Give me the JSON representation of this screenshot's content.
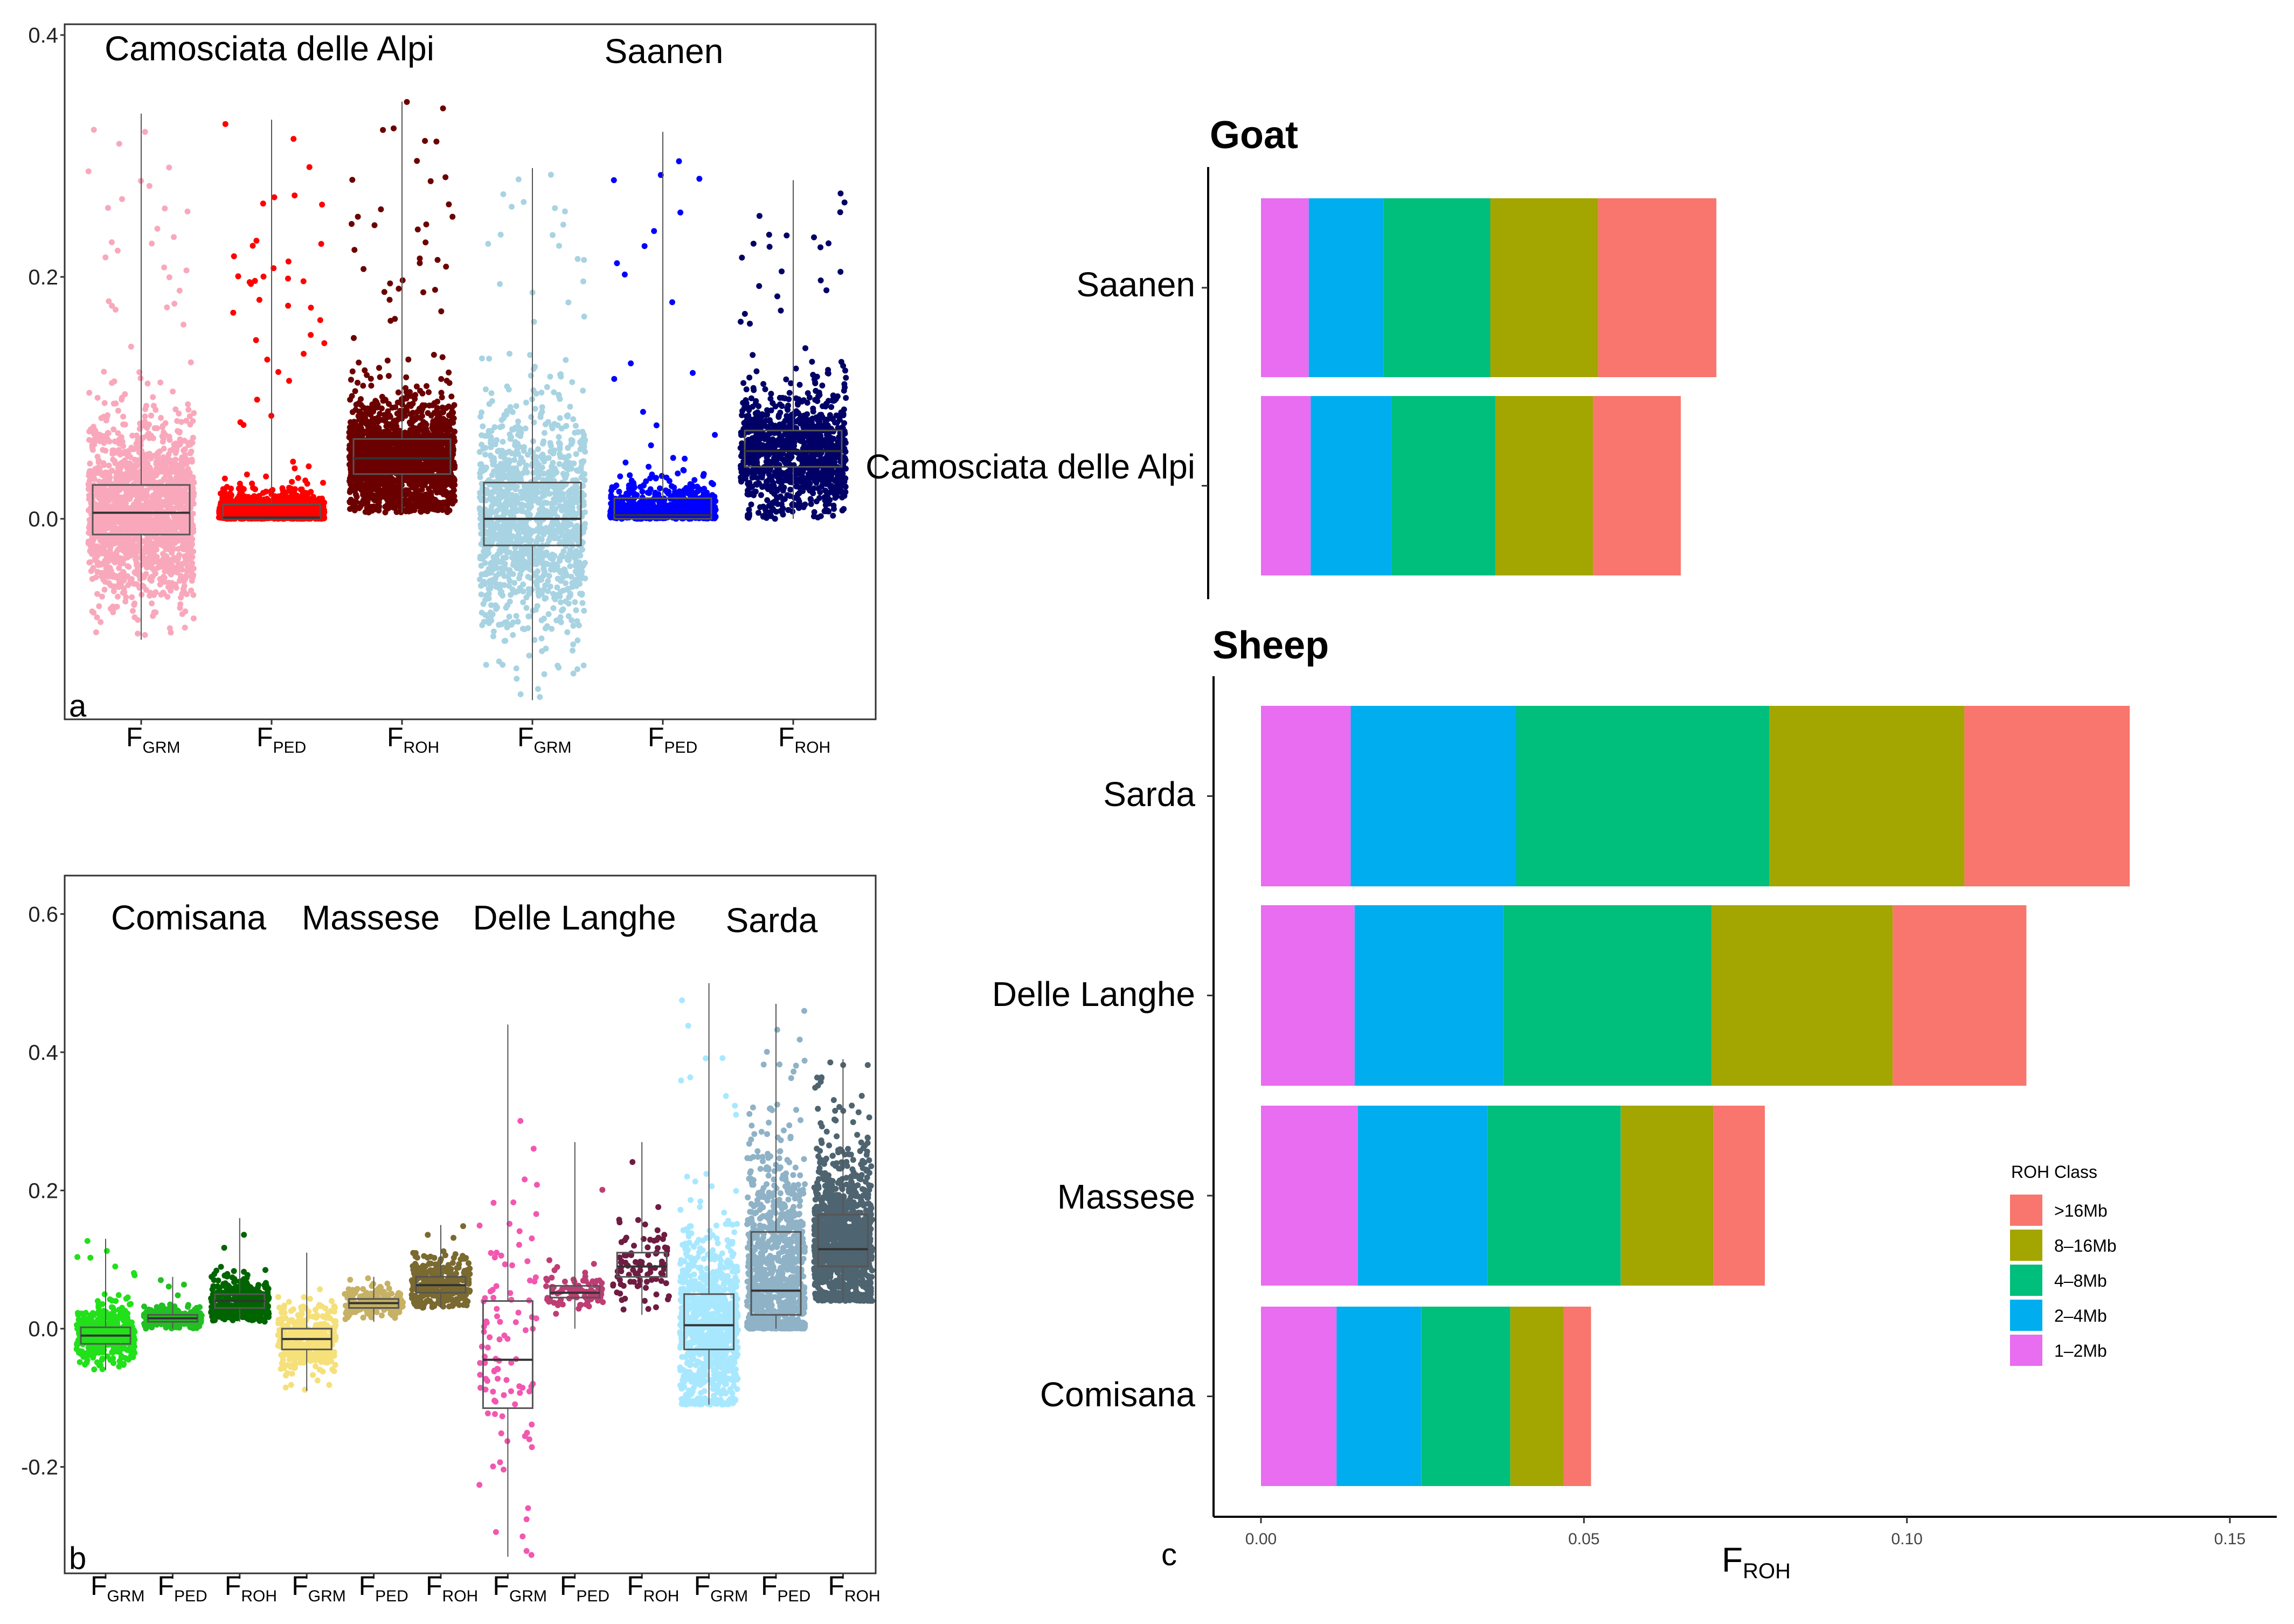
{
  "colors": {
    "c_1_2": "#E86DF0",
    "c_2_4": "#00AEEF",
    "c_4_8": "#00BE7C",
    "c_8_16": "#A3A500",
    "c_16": "#F8766D"
  },
  "chart_data": [
    {
      "id": "a",
      "type": "boxplot",
      "panel_label": "a",
      "ylim": [
        -0.16,
        0.4
      ],
      "yticks": [
        0.0,
        0.2,
        0.4
      ],
      "ytick_labels": [
        "0.0",
        "0.2",
        "0.4"
      ],
      "group_labels": [
        "Camosciata delle Alpi",
        "Saanen"
      ],
      "series": [
        {
          "breed": "Camosciata delle Alpi",
          "name": "F",
          "sub": "GRM",
          "color": "#F9A8BC",
          "q1": -0.013,
          "median": 0.005,
          "q3": 0.028,
          "min": -0.1,
          "max": 0.335,
          "n": 1800
        },
        {
          "breed": "Camosciata delle Alpi",
          "name": "F",
          "sub": "PED",
          "color": "#FF0000",
          "q1": 0.0,
          "median": 0.001,
          "q3": 0.012,
          "min": 0.0,
          "max": 0.33,
          "n": 1500
        },
        {
          "breed": "Camosciata delle Alpi",
          "name": "F",
          "sub": "ROH",
          "color": "#6B0000",
          "q1": 0.037,
          "median": 0.05,
          "q3": 0.066,
          "min": 0.005,
          "max": 0.345,
          "n": 1700
        },
        {
          "breed": "Saanen",
          "name": "F",
          "sub": "GRM",
          "color": "#A8D3E2",
          "q1": -0.022,
          "median": 0.0,
          "q3": 0.03,
          "min": -0.15,
          "max": 0.29,
          "n": 1300
        },
        {
          "breed": "Saanen",
          "name": "F",
          "sub": "PED",
          "color": "#0000FF",
          "q1": 0.0,
          "median": 0.003,
          "q3": 0.017,
          "min": 0.0,
          "max": 0.32,
          "n": 700
        },
        {
          "breed": "Saanen",
          "name": "F",
          "sub": "ROH",
          "color": "#000066",
          "q1": 0.043,
          "median": 0.056,
          "q3": 0.073,
          "min": 0.0,
          "max": 0.28,
          "n": 1100
        }
      ]
    },
    {
      "id": "b",
      "type": "boxplot",
      "panel_label": "b",
      "ylim": [
        -0.34,
        0.64
      ],
      "yticks": [
        -0.2,
        0.0,
        0.2,
        0.4,
        0.6
      ],
      "ytick_labels": [
        "-0.2",
        "0.0",
        "0.2",
        "0.4",
        "0.6"
      ],
      "group_labels": [
        "Comisana",
        "Massese",
        "Delle Langhe",
        "Sarda"
      ],
      "series": [
        {
          "breed": "Comisana",
          "name": "F",
          "sub": "GRM",
          "color": "#22E01A",
          "q1": -0.022,
          "median": -0.01,
          "q3": 0.002,
          "min": -0.06,
          "max": 0.13,
          "n": 400
        },
        {
          "breed": "Comisana",
          "name": "F",
          "sub": "PED",
          "color": "#22C022",
          "q1": 0.01,
          "median": 0.015,
          "q3": 0.02,
          "min": 0.0,
          "max": 0.075,
          "n": 260
        },
        {
          "breed": "Comisana",
          "name": "F",
          "sub": "ROH",
          "color": "#006400",
          "q1": 0.03,
          "median": 0.04,
          "q3": 0.05,
          "min": 0.01,
          "max": 0.16,
          "n": 400
        },
        {
          "breed": "Massese",
          "name": "F",
          "sub": "GRM",
          "color": "#F5E07A",
          "q1": -0.03,
          "median": -0.015,
          "q3": 0.0,
          "min": -0.09,
          "max": 0.11,
          "n": 350
        },
        {
          "breed": "Massese",
          "name": "F",
          "sub": "PED",
          "color": "#C6B164",
          "q1": 0.03,
          "median": 0.037,
          "q3": 0.043,
          "min": 0.01,
          "max": 0.075,
          "n": 200
        },
        {
          "breed": "Massese",
          "name": "F",
          "sub": "ROH",
          "color": "#7A6A30",
          "q1": 0.052,
          "median": 0.063,
          "q3": 0.075,
          "min": 0.03,
          "max": 0.15,
          "n": 320
        },
        {
          "breed": "Delle Langhe",
          "name": "F",
          "sub": "GRM",
          "color": "#F257AF",
          "q1": -0.115,
          "median": -0.045,
          "q3": 0.04,
          "min": -0.33,
          "max": 0.44,
          "n": 100
        },
        {
          "breed": "Delle Langhe",
          "name": "F",
          "sub": "PED",
          "color": "#BE3D74",
          "q1": 0.045,
          "median": 0.052,
          "q3": 0.062,
          "min": 0.0,
          "max": 0.27,
          "n": 90
        },
        {
          "breed": "Delle Langhe",
          "name": "F",
          "sub": "ROH",
          "color": "#6E1C42",
          "q1": 0.075,
          "median": 0.09,
          "q3": 0.11,
          "min": 0.02,
          "max": 0.27,
          "n": 90
        },
        {
          "breed": "Sarda",
          "name": "F",
          "sub": "GRM",
          "color": "#A8E8FF",
          "q1": -0.03,
          "median": 0.005,
          "q3": 0.05,
          "min": -0.11,
          "max": 0.5,
          "n": 900
        },
        {
          "breed": "Sarda",
          "name": "F",
          "sub": "PED",
          "color": "#8FB2C6",
          "q1": 0.02,
          "median": 0.055,
          "q3": 0.14,
          "min": 0.0,
          "max": 0.47,
          "n": 1100
        },
        {
          "breed": "Sarda",
          "name": "F",
          "sub": "ROH",
          "color": "#4E6470",
          "q1": 0.09,
          "median": 0.115,
          "q3": 0.165,
          "min": 0.04,
          "max": 0.39,
          "n": 1100
        }
      ]
    },
    {
      "id": "c",
      "type": "stacked_bar_horizontal",
      "panel_label": "c",
      "xlabel": "F",
      "xlabel_sub": "ROH",
      "xlim": [
        0,
        0.15
      ],
      "xticks": [
        0.0,
        0.05,
        0.1,
        0.15
      ],
      "xtick_labels": [
        "0.00",
        "0.05",
        "0.10",
        "0.15"
      ],
      "legend_title": "ROH Class",
      "legend_position": "right",
      "classes": [
        "1–2Mb",
        "2–4Mb",
        "4–8Mb",
        "8–16Mb",
        ">16Mb"
      ],
      "legend_order": [
        ">16Mb",
        "8–16Mb",
        "4–8Mb",
        "2–4Mb",
        "1–2Mb"
      ],
      "groups": [
        {
          "title": "Goat",
          "categories": [
            "Saanen",
            "Camosciata delle Alpi"
          ],
          "values": [
            [
              0.0074,
              0.0116,
              0.0165,
              0.0167,
              0.0183
            ],
            [
              0.0077,
              0.0125,
              0.0161,
              0.0151,
              0.0136
            ]
          ]
        },
        {
          "title": "Sheep",
          "categories": [
            "Sarda",
            "Delle Langhe",
            "Massese",
            "Comisana"
          ],
          "values": [
            [
              0.0139,
              0.0256,
              0.0392,
              0.0302,
              0.0256
            ],
            [
              0.0145,
              0.0231,
              0.0321,
              0.0281,
              0.0207
            ],
            [
              0.015,
              0.0201,
              0.0206,
              0.0143,
              0.008
            ],
            [
              0.0117,
              0.0131,
              0.0138,
              0.0082,
              0.0043
            ]
          ]
        }
      ]
    }
  ]
}
